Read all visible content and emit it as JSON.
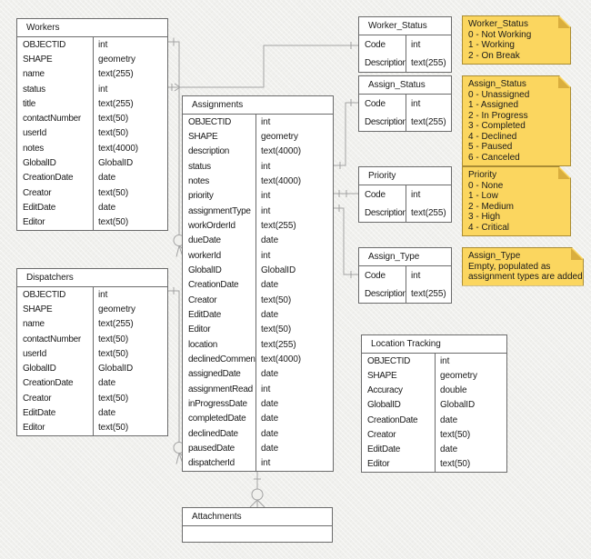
{
  "colors": {
    "background": "#F0F0ED",
    "table_border": "#6B6B6B",
    "connector": "#A3A3A3",
    "note_fill": "#FBD65F",
    "note_border": "#A98C34",
    "note_fold": "#D9AE3E"
  },
  "tables": {
    "workers": {
      "title": "Workers",
      "fields": [
        {
          "name": "OBJECTID",
          "type": "int"
        },
        {
          "name": "SHAPE",
          "type": "geometry"
        },
        {
          "name": "name",
          "type": "text(255)"
        },
        {
          "name": "status",
          "type": "int"
        },
        {
          "name": "title",
          "type": "text(255)"
        },
        {
          "name": "contactNumber",
          "type": "text(50)"
        },
        {
          "name": "userId",
          "type": "text(50)"
        },
        {
          "name": "notes",
          "type": "text(4000)"
        },
        {
          "name": "GlobalID",
          "type": "GlobalID"
        },
        {
          "name": "CreationDate",
          "type": "date"
        },
        {
          "name": "Creator",
          "type": "text(50)"
        },
        {
          "name": "EditDate",
          "type": "date"
        },
        {
          "name": "Editor",
          "type": "text(50)"
        }
      ]
    },
    "dispatchers": {
      "title": "Dispatchers",
      "fields": [
        {
          "name": "OBJECTID",
          "type": "int"
        },
        {
          "name": "SHAPE",
          "type": "geometry"
        },
        {
          "name": "name",
          "type": "text(255)"
        },
        {
          "name": "contactNumber",
          "type": "text(50)"
        },
        {
          "name": "userId",
          "type": "text(50)"
        },
        {
          "name": "GlobalID",
          "type": "GlobalID"
        },
        {
          "name": "CreationDate",
          "type": "date"
        },
        {
          "name": "Creator",
          "type": "text(50)"
        },
        {
          "name": "EditDate",
          "type": "date"
        },
        {
          "name": "Editor",
          "type": "text(50)"
        }
      ]
    },
    "assignments": {
      "title": "Assignments",
      "fields": [
        {
          "name": "OBJECTID",
          "type": "int"
        },
        {
          "name": "SHAPE",
          "type": "geometry"
        },
        {
          "name": "description",
          "type": "text(4000)"
        },
        {
          "name": "status",
          "type": "int"
        },
        {
          "name": "notes",
          "type": "text(4000)"
        },
        {
          "name": "priority",
          "type": "int"
        },
        {
          "name": "assignmentType",
          "type": "int"
        },
        {
          "name": "workOrderId",
          "type": "text(255)"
        },
        {
          "name": "dueDate",
          "type": "date"
        },
        {
          "name": "workerId",
          "type": "int"
        },
        {
          "name": "GlobalID",
          "type": "GlobalID"
        },
        {
          "name": "CreationDate",
          "type": "date"
        },
        {
          "name": "Creator",
          "type": "text(50)"
        },
        {
          "name": "EditDate",
          "type": "date"
        },
        {
          "name": "Editor",
          "type": "text(50)"
        },
        {
          "name": "location",
          "type": "text(255)"
        },
        {
          "name": "declinedComment",
          "type": "text(4000)"
        },
        {
          "name": "assignedDate",
          "type": "date"
        },
        {
          "name": "assignmentRead",
          "type": "int"
        },
        {
          "name": "inProgressDate",
          "type": "date"
        },
        {
          "name": "completedDate",
          "type": "date"
        },
        {
          "name": "declinedDate",
          "type": "date"
        },
        {
          "name": "pausedDate",
          "type": "date"
        },
        {
          "name": "dispatcherId",
          "type": "int"
        }
      ]
    },
    "worker_status": {
      "title": "Worker_Status",
      "fields": [
        {
          "name": "Code",
          "type": "int"
        },
        {
          "name": "Description",
          "type": "text(255)"
        }
      ]
    },
    "assign_status": {
      "title": "Assign_Status",
      "fields": [
        {
          "name": "Code",
          "type": "int"
        },
        {
          "name": "Description",
          "type": "text(255)"
        }
      ]
    },
    "priority": {
      "title": "Priority",
      "fields": [
        {
          "name": "Code",
          "type": "int"
        },
        {
          "name": "Description",
          "type": "text(255)"
        }
      ]
    },
    "assign_type": {
      "title": "Assign_Type",
      "fields": [
        {
          "name": "Code",
          "type": "int"
        },
        {
          "name": "Description",
          "type": "text(255)"
        }
      ]
    },
    "location_tracking": {
      "title": "Location Tracking",
      "fields": [
        {
          "name": "OBJECTID",
          "type": "int"
        },
        {
          "name": "SHAPE",
          "type": "geometry"
        },
        {
          "name": "Accuracy",
          "type": "double"
        },
        {
          "name": "GlobalID",
          "type": "GlobalID"
        },
        {
          "name": "CreationDate",
          "type": "date"
        },
        {
          "name": "Creator",
          "type": "text(50)"
        },
        {
          "name": "EditDate",
          "type": "date"
        },
        {
          "name": "Editor",
          "type": "text(50)"
        }
      ]
    },
    "attachments": {
      "title": "Attachments",
      "fields": []
    }
  },
  "notes": {
    "worker_status": {
      "title": "Worker_Status",
      "lines": [
        "0 - Not Working",
        "1 - Working",
        "2 - On Break"
      ]
    },
    "assign_status": {
      "title": "Assign_Status",
      "lines": [
        "0 - Unassigned",
        "1 - Assigned",
        "2 - In Progress",
        "3 - Completed",
        "4 - Declined",
        "5 - Paused",
        "6 - Canceled"
      ]
    },
    "priority": {
      "title": "Priority",
      "lines": [
        "0 - None",
        "1 - Low",
        "2 - Medium",
        "3 - High",
        "4 - Critical"
      ]
    },
    "assign_type": {
      "title": "Assign_Type",
      "lines": [
        "Empty, populated as",
        "assignment types are added"
      ]
    }
  }
}
